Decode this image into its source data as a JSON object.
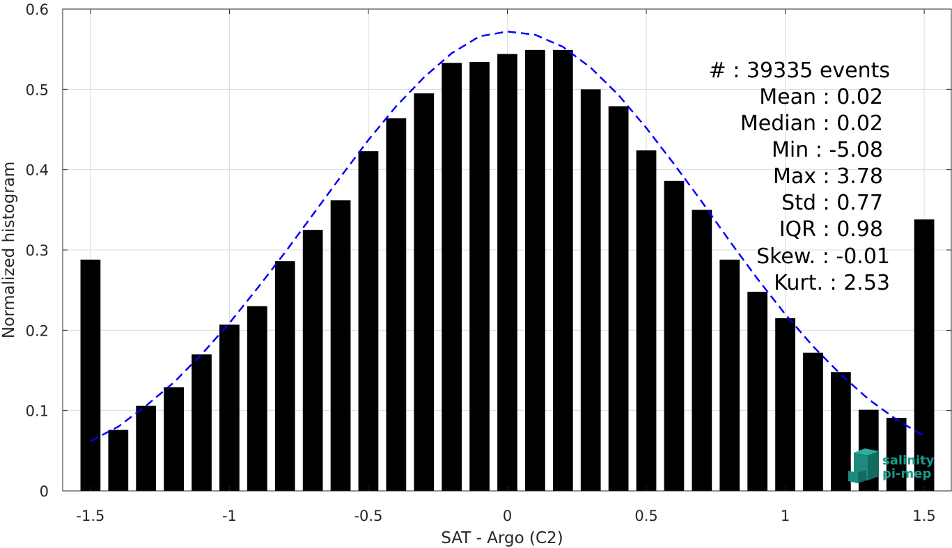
{
  "chart_data": {
    "type": "bar",
    "title": "",
    "xlabel": "SAT - Argo (C2)",
    "ylabel": "Normalized histogram",
    "xlim": [
      -1.6,
      1.6
    ],
    "ylim": [
      0,
      0.6
    ],
    "grid": true,
    "x_ticks": [
      -1.5,
      -1,
      -0.5,
      0,
      0.5,
      1,
      1.5
    ],
    "x_tick_labels": [
      "-1.5",
      "-1",
      "-0.5",
      "0",
      "0.5",
      "1",
      "1.5"
    ],
    "y_ticks": [
      0,
      0.1,
      0.2,
      0.3,
      0.4,
      0.5,
      0.6
    ],
    "y_tick_labels": [
      "0",
      "0.1",
      "0.2",
      "0.3",
      "0.4",
      "0.5",
      "0.6"
    ],
    "bar_color": "#000000",
    "bins": [
      -1.5,
      -1.4,
      -1.3,
      -1.2,
      -1.1,
      -1.0,
      -0.9,
      -0.8,
      -0.7,
      -0.6,
      -0.5,
      -0.4,
      -0.3,
      -0.2,
      -0.1,
      0.0,
      0.1,
      0.2,
      0.3,
      0.4,
      0.5,
      0.6,
      0.7,
      0.8,
      0.9,
      1.0,
      1.1,
      1.2,
      1.3,
      1.4,
      1.5
    ],
    "values": [
      0.288,
      0.076,
      0.106,
      0.129,
      0.17,
      0.207,
      0.23,
      0.286,
      0.325,
      0.362,
      0.423,
      0.464,
      0.495,
      0.533,
      0.534,
      0.544,
      0.549,
      0.549,
      0.5,
      0.479,
      0.424,
      0.386,
      0.35,
      0.288,
      0.248,
      0.215,
      0.172,
      0.148,
      0.101,
      0.091,
      0.338
    ],
    "fit_curve": {
      "style": "dashed",
      "color": "#0000ff",
      "x": [
        -1.5,
        -1.4,
        -1.3,
        -1.2,
        -1.1,
        -1.0,
        -0.9,
        -0.8,
        -0.7,
        -0.6,
        -0.5,
        -0.4,
        -0.3,
        -0.2,
        -0.1,
        0.0,
        0.1,
        0.2,
        0.3,
        0.4,
        0.5,
        0.6,
        0.7,
        0.8,
        0.9,
        1.0,
        1.1,
        1.2,
        1.3,
        1.4,
        1.5
      ],
      "y": [
        0.062,
        0.08,
        0.106,
        0.135,
        0.17,
        0.209,
        0.252,
        0.297,
        0.344,
        0.391,
        0.437,
        0.479,
        0.515,
        0.545,
        0.566,
        0.572,
        0.568,
        0.553,
        0.527,
        0.493,
        0.452,
        0.407,
        0.36,
        0.311,
        0.264,
        0.22,
        0.18,
        0.145,
        0.114,
        0.089,
        0.068
      ]
    },
    "annotations": [
      "#  : 39335 events",
      "Mean : 0.02",
      "Median : 0.02",
      "Min : -5.08",
      "Max : 3.78",
      "Std : 0.77",
      "IQR : 0.98",
      "Skew. : -0.01",
      "Kurt. : 2.53"
    ]
  },
  "logo": {
    "line1": "salinity",
    "line2": "pi-mep",
    "color": "#1a9a8a"
  }
}
